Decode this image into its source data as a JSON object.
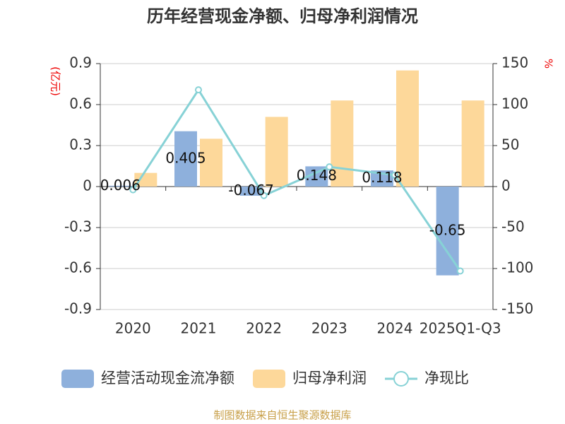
{
  "chart_data": {
    "type": "bar_line",
    "title": "历年经营现金净额、归母净利润情况",
    "y_label": "(亿元)",
    "y2_label": "%",
    "source": "制图数据来自恒生聚源数据库",
    "categories": [
      "2020",
      "2021",
      "2022",
      "2023",
      "2024",
      "2025Q1-Q3"
    ],
    "series": [
      {
        "name": "经营活动现金流净额",
        "type": "bar",
        "color": "#8eb0dc",
        "values": [
          0.006,
          0.405,
          -0.067,
          0.148,
          0.118,
          -0.65
        ],
        "show_labels": true
      },
      {
        "name": "归母净利润",
        "type": "bar",
        "color": "#fdd89a",
        "values": [
          0.1,
          0.35,
          0.51,
          0.63,
          0.85,
          0.63
        ]
      },
      {
        "name": "净现比",
        "type": "line",
        "axis": "y2",
        "color": "#87d2d6",
        "values": [
          -4,
          118,
          -11,
          24,
          14,
          -103
        ]
      }
    ],
    "ylim": [
      -0.9,
      0.9
    ],
    "yticks": [
      0.9,
      0.6,
      0.3,
      0,
      -0.3,
      -0.6,
      -0.9
    ],
    "y2lim": [
      -150,
      150
    ],
    "y2ticks": [
      150,
      100,
      50,
      0,
      -50,
      -100,
      -150
    ],
    "grid": true
  }
}
